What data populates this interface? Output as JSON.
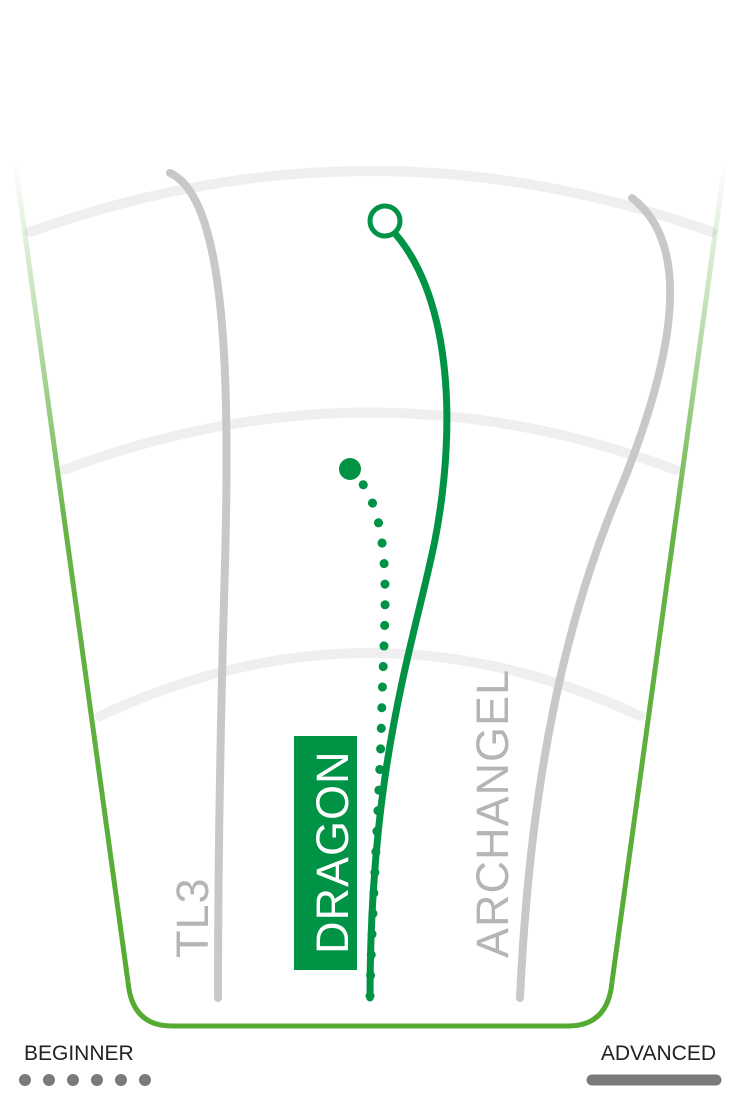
{
  "discs": [
    {
      "name": "TL3",
      "color": "#c8c8c8",
      "label_style": "plain"
    },
    {
      "name": "DRAGON",
      "color": "#009245",
      "label_style": "badge"
    },
    {
      "name": "ARCHANGEL",
      "color": "#c8c8c8",
      "label_style": "plain"
    }
  ],
  "skill_scale": {
    "beginner_label": "BEGINNER",
    "advanced_label": "ADVANCED"
  },
  "colors": {
    "outline_green": "#55ab32",
    "highlight_green": "#009245",
    "ring_gray": "#efefef",
    "muted_gray": "#c8c8c8",
    "scale_gray": "#7a7a7a"
  }
}
